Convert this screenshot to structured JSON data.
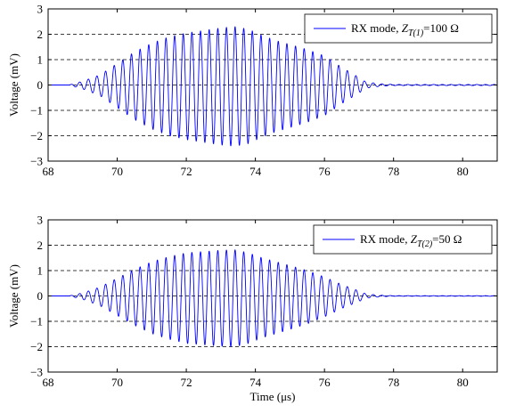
{
  "chart_data": [
    {
      "type": "line",
      "xlabel": "",
      "ylabel": "Voltage (mV)",
      "xlim": [
        68,
        81
      ],
      "ylim": [
        -3,
        3
      ],
      "xticks": [
        68,
        70,
        72,
        74,
        76,
        78,
        80
      ],
      "yticks": [
        -3,
        -2,
        -1,
        0,
        1,
        2,
        3
      ],
      "grid": "horizontal dashed at y=-2,-1,0,1,2",
      "legend_placement": "top-right",
      "series": [
        {
          "legend": {
            "prefix": "RX mode, ",
            "z": "Z",
            "sub": "T(1)",
            "suffix": "=100 Ω"
          },
          "color": "#0000ff",
          "signal": {
            "description": "burst oscillation",
            "frequency_mhz": 4.0,
            "start_us": 68.6,
            "end_us": 77.2,
            "envelope_x": [
              68.6,
              69.0,
              69.5,
              70.0,
              70.5,
              71.0,
              71.5,
              72.0,
              72.5,
              73.0,
              73.4,
              73.8,
              74.2,
              74.6,
              75.0,
              75.5,
              76.0,
              76.5,
              77.0,
              77.2,
              77.6,
              78.0,
              81.0
            ],
            "envelope_y": [
              0.0,
              0.15,
              0.4,
              0.85,
              1.3,
              1.65,
              1.9,
              2.05,
              2.15,
              2.25,
              2.3,
              2.2,
              1.95,
              1.75,
              1.6,
              1.4,
              1.15,
              0.7,
              0.3,
              0.12,
              0.05,
              0.02,
              0.02
            ],
            "asymmetry_lower": 1.05
          }
        }
      ]
    },
    {
      "type": "line",
      "xlabel": "Time (μs)",
      "ylabel": "Voltage (mV)",
      "xlim": [
        68,
        81
      ],
      "ylim": [
        -3,
        3
      ],
      "xticks": [
        68,
        70,
        72,
        74,
        76,
        78,
        80
      ],
      "yticks": [
        -3,
        -2,
        -1,
        0,
        1,
        2,
        3
      ],
      "grid": "horizontal dashed at y=-2,-1,0,1,2",
      "legend_placement": "top-right",
      "series": [
        {
          "legend": {
            "prefix": "RX mode, ",
            "z": "Z",
            "sub": "T(2)",
            "suffix": "=50 Ω"
          },
          "color": "#0000ff",
          "signal": {
            "description": "burst oscillation",
            "frequency_mhz": 4.0,
            "start_us": 68.6,
            "end_us": 77.2,
            "envelope_x": [
              68.6,
              69.0,
              69.5,
              70.0,
              70.5,
              71.0,
              71.5,
              72.0,
              72.5,
              73.0,
              73.4,
              73.8,
              74.2,
              74.6,
              75.0,
              75.5,
              76.0,
              76.5,
              77.0,
              77.2,
              77.6,
              78.0,
              81.0
            ],
            "envelope_y": [
              0.0,
              0.12,
              0.35,
              0.7,
              1.05,
              1.35,
              1.55,
              1.7,
              1.75,
              1.8,
              1.82,
              1.7,
              1.5,
              1.35,
              1.2,
              1.0,
              0.75,
              0.45,
              0.2,
              0.08,
              0.03,
              0.01,
              0.01
            ],
            "asymmetry_lower": 1.1
          }
        }
      ]
    }
  ]
}
